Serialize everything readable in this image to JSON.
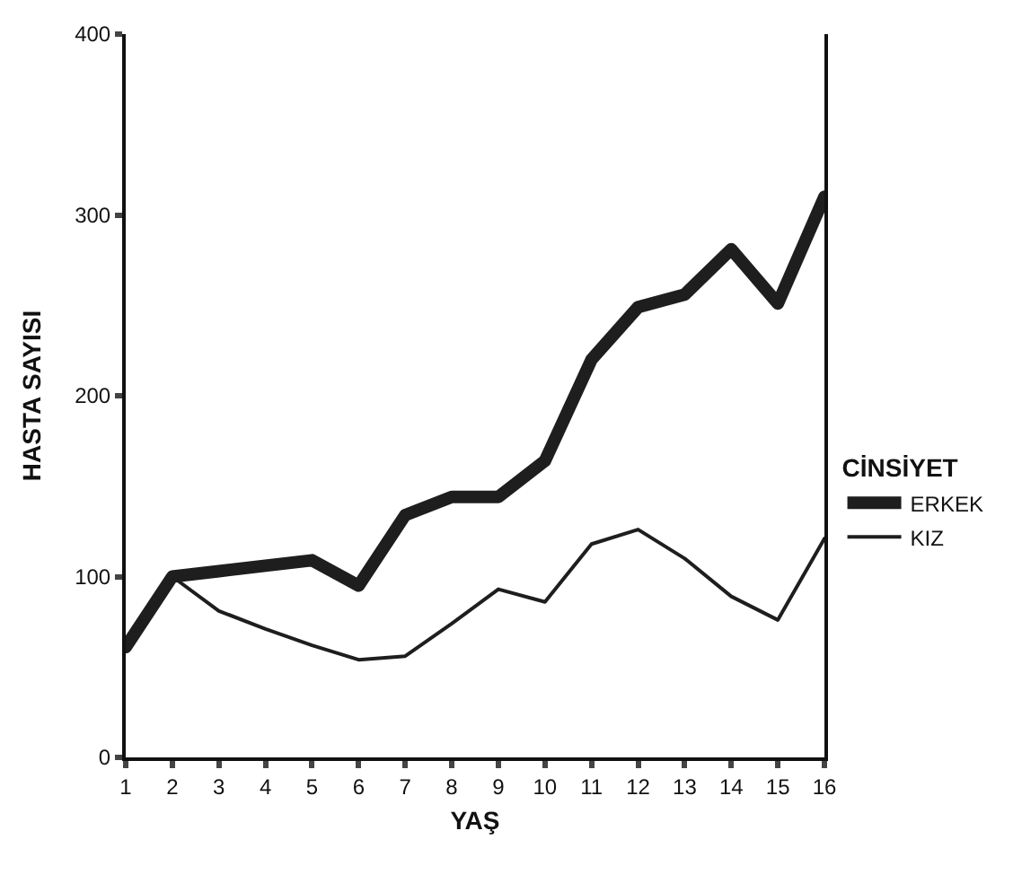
{
  "chart_data": {
    "type": "line",
    "xlabel": "YAŞ",
    "ylabel": "HASTA SAYISI",
    "legend_title": "CİNSİYET",
    "x": [
      1,
      2,
      3,
      4,
      5,
      6,
      7,
      8,
      9,
      10,
      11,
      12,
      13,
      14,
      15,
      16
    ],
    "series": [
      {
        "name": "ERKEK",
        "color": "#1e1e1e",
        "values": [
          61,
          100,
          103,
          106,
          109,
          95,
          134,
          144,
          144,
          164,
          220,
          249,
          256,
          281,
          251,
          310
        ]
      },
      {
        "name": "KIZ",
        "color": "#1e1e1e",
        "values": [
          61,
          100,
          81,
          71,
          62,
          54,
          56,
          74,
          93,
          86,
          118,
          126,
          110,
          89,
          76,
          121
        ]
      }
    ],
    "xlim": [
      1,
      16
    ],
    "xticks": [
      1,
      2,
      3,
      4,
      5,
      6,
      7,
      8,
      9,
      10,
      11,
      12,
      13,
      14,
      15,
      16
    ],
    "ylim": [
      0,
      400
    ],
    "yticks": [
      0,
      100,
      200,
      300,
      400
    ],
    "legend": "right",
    "marker": "none",
    "line_style": "solid"
  }
}
